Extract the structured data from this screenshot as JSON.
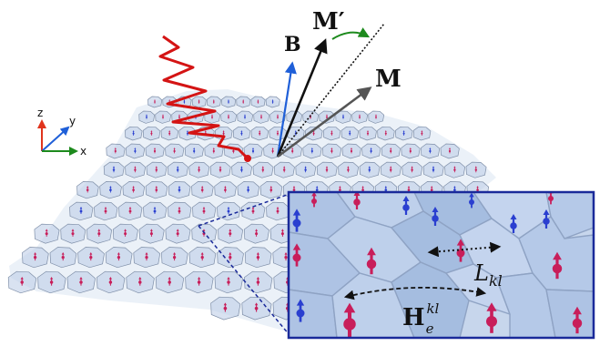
{
  "axes": {
    "z_label": "z",
    "y_label": "y",
    "x_label": "x"
  },
  "vectors": {
    "b_label": "B",
    "m_prime_label": "M′",
    "m_label": "M"
  },
  "inset": {
    "distance_label_base": "L",
    "distance_label_sub": "kl",
    "field_label_base": "H",
    "field_label_sup": "kl",
    "field_label_sub": "e"
  },
  "colors": {
    "grain_fill": "#b9cbe6",
    "grain_edge": "#7f8fa8",
    "spin_up": "#c81e5a",
    "spin_down": "#2a3fd0",
    "pulse": "#d41414",
    "inset_border": "#1a2a9a",
    "b_arrow": "#1f5fd8",
    "rotation_arrow": "#1d8a1d"
  },
  "icons": {
    "pulse": "laser-pulse-icon",
    "axes": "coordinate-axes-icon"
  }
}
